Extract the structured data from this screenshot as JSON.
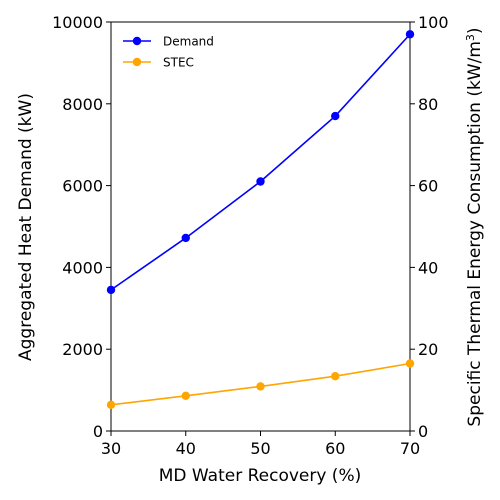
{
  "chart_data": {
    "type": "line",
    "xlabel": "MD Water Recovery (%)",
    "x": [
      30,
      40,
      50,
      60,
      70
    ],
    "xlim": [
      30,
      70
    ],
    "xticks": [
      30,
      40,
      50,
      60,
      70
    ],
    "y_left": {
      "label": "Aggregated Heat Demand (kW)",
      "lim": [
        0,
        10000
      ],
      "ticks": [
        0,
        2000,
        4000,
        6000,
        8000,
        10000
      ]
    },
    "y_right": {
      "label_main": "Specific Thermal Energy Consumption (kW/m",
      "label_sup": "3",
      "label_end": ")",
      "lim": [
        0,
        100
      ],
      "ticks": [
        0,
        20,
        40,
        60,
        80,
        100
      ]
    },
    "series": [
      {
        "name": "Demand",
        "axis": "left",
        "color": "#0000ff",
        "values": [
          3450,
          4720,
          6100,
          7700,
          9700
        ]
      },
      {
        "name": "STEC",
        "axis": "right",
        "color": "#ffa500",
        "values": [
          6.4,
          8.6,
          10.9,
          13.4,
          16.5
        ]
      }
    ],
    "legend": {
      "placement": "upper-left"
    },
    "grid": false
  }
}
